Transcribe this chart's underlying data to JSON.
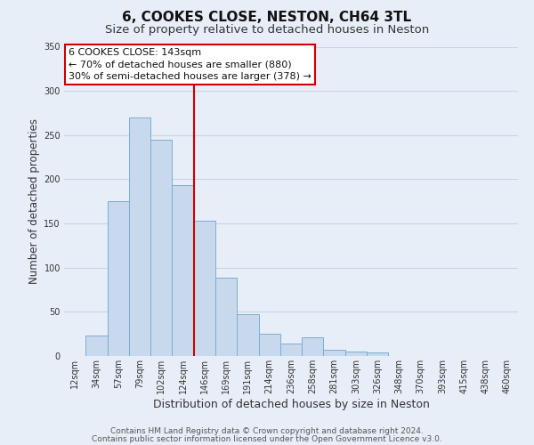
{
  "title": "6, COOKES CLOSE, NESTON, CH64 3TL",
  "subtitle": "Size of property relative to detached houses in Neston",
  "xlabel": "Distribution of detached houses by size in Neston",
  "ylabel": "Number of detached properties",
  "bar_labels": [
    "12sqm",
    "34sqm",
    "57sqm",
    "79sqm",
    "102sqm",
    "124sqm",
    "146sqm",
    "169sqm",
    "191sqm",
    "214sqm",
    "236sqm",
    "258sqm",
    "281sqm",
    "303sqm",
    "326sqm",
    "348sqm",
    "370sqm",
    "393sqm",
    "415sqm",
    "438sqm",
    "460sqm"
  ],
  "bar_values": [
    0,
    23,
    175,
    270,
    245,
    193,
    153,
    89,
    47,
    25,
    14,
    21,
    7,
    5,
    4,
    0,
    0,
    0,
    0,
    0,
    0
  ],
  "bar_color": "#c9d9ed",
  "bar_edge_color": "#7aadd4",
  "vline_index": 6,
  "vline_color": "#cc0000",
  "ylim": [
    0,
    350
  ],
  "yticks": [
    0,
    50,
    100,
    150,
    200,
    250,
    300,
    350
  ],
  "annotation_title": "6 COOKES CLOSE: 143sqm",
  "annotation_line1": "← 70% of detached houses are smaller (880)",
  "annotation_line2": "30% of semi-detached houses are larger (378) →",
  "annotation_box_facecolor": "#ffffff",
  "annotation_box_edgecolor": "#cc0000",
  "footer1": "Contains HM Land Registry data © Crown copyright and database right 2024.",
  "footer2": "Contains public sector information licensed under the Open Government Licence v3.0.",
  "background_color": "#e8eef7",
  "grid_color": "#c8d4e4",
  "title_fontsize": 11,
  "subtitle_fontsize": 9.5,
  "xlabel_fontsize": 9,
  "ylabel_fontsize": 8.5,
  "tick_fontsize": 7,
  "annotation_fontsize": 8,
  "footer_fontsize": 6.5
}
